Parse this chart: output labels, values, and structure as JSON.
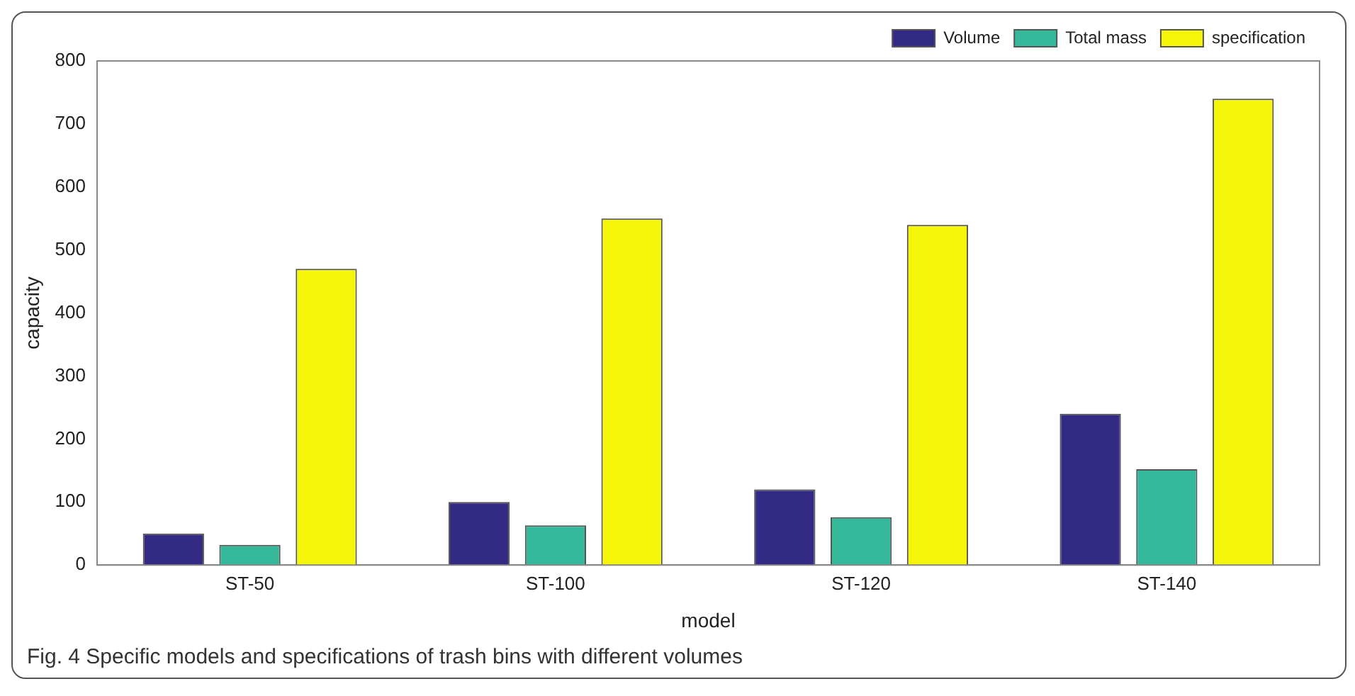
{
  "chart_data": {
    "type": "bar",
    "xlabel": "model",
    "ylabel": "capacity",
    "categories": [
      "ST-50",
      "ST-100",
      "ST-120",
      "ST-140"
    ],
    "series": [
      {
        "name": "Volume",
        "color": "#332a85",
        "values": [
          50,
          100,
          120,
          240
        ]
      },
      {
        "name": "Total mass",
        "color": "#36b89b",
        "values": [
          32,
          63,
          76,
          152
        ]
      },
      {
        "name": "specification",
        "color": "#f5f50a",
        "values": [
          470,
          550,
          540,
          740
        ]
      }
    ],
    "ylim": [
      0,
      800
    ],
    "yticks": [
      0,
      100,
      200,
      300,
      400,
      500,
      600,
      700,
      800
    ],
    "grid": false,
    "legend": "top right",
    "annotations": [
      "Fig. 4 Specific models and specifications of trash bins with different volumes"
    ]
  }
}
